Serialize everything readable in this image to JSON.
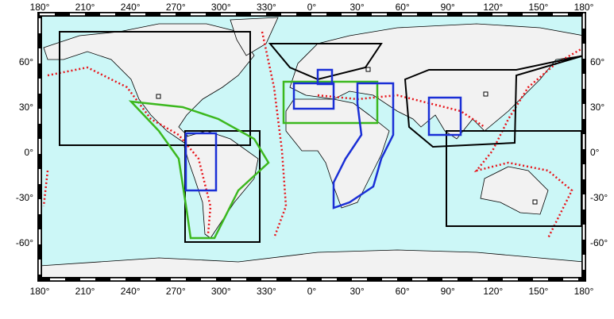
{
  "map": {
    "lon_labels": [
      "180°",
      "210°",
      "240°",
      "270°",
      "300°",
      "330°",
      "0°",
      "30°",
      "60°",
      "90°",
      "120°",
      "150°",
      "180°"
    ],
    "lat_labels": [
      "60°",
      "30°",
      "0°",
      "-30°",
      "-60°"
    ]
  }
}
